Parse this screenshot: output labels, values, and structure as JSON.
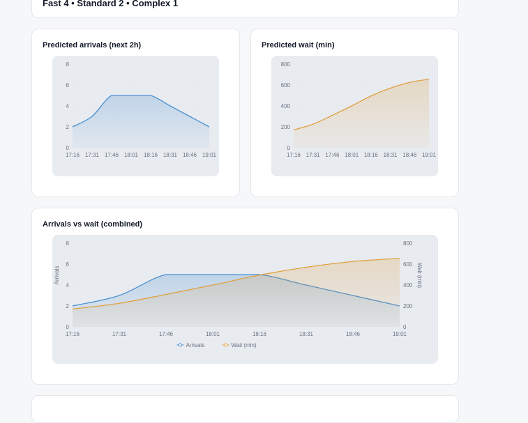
{
  "summary_card": {
    "text": "Fast 4 • Standard 2 • Complex 1"
  },
  "cards": {
    "arrivals_title": "Predicted arrivals (next 2h)",
    "wait_title": "Predicted wait (min)",
    "combined_title": "Arrivals vs wait (combined)"
  },
  "colors": {
    "arrivals": "#4a90d0",
    "wait": "#e0a040"
  },
  "chart_data": [
    {
      "type": "area",
      "title": "Predicted arrivals (next 2h)",
      "categories": [
        "17:16",
        "17:31",
        "17:46",
        "18:01",
        "18:16",
        "18:31",
        "18:46",
        "19:01"
      ],
      "series": [
        {
          "values": [
            2,
            3,
            5,
            5,
            5,
            4,
            3,
            2
          ]
        }
      ],
      "ylim": [
        0,
        8
      ],
      "yticks": [
        "0",
        "2",
        "4",
        "6",
        "8"
      ],
      "grid": true
    },
    {
      "type": "area",
      "title": "Predicted wait (min)",
      "categories": [
        "17:16",
        "17:31",
        "17:46",
        "18:01",
        "18:16",
        "18:31",
        "18:46",
        "19:01"
      ],
      "series": [
        {
          "values": [
            170,
            225,
            310,
            400,
            495,
            570,
            625,
            655
          ]
        }
      ],
      "ylim": [
        0,
        800
      ],
      "yticks": [
        "0",
        "200",
        "400",
        "600",
        "800"
      ],
      "grid": true
    },
    {
      "type": "area",
      "title": "Arrivals vs wait (combined)",
      "categories": [
        "17:16",
        "17:31",
        "17:46",
        "18:01",
        "18:16",
        "18:31",
        "18:46",
        "19:01"
      ],
      "series": [
        {
          "name": "Arrivals",
          "axis": "left",
          "values": [
            2,
            3,
            5,
            5,
            5,
            4,
            3,
            2
          ]
        },
        {
          "name": "Wait (min)",
          "axis": "right",
          "values": [
            170,
            225,
            310,
            400,
            495,
            570,
            625,
            655
          ]
        }
      ],
      "ylabel": "Arrivals",
      "ylabel_right": "Wait (min)",
      "ylim": [
        0,
        8
      ],
      "ylim_right": [
        0,
        800
      ],
      "yticks": [
        "0",
        "2",
        "4",
        "6",
        "8"
      ],
      "yticks_right": [
        "0",
        "200",
        "400",
        "600",
        "800"
      ],
      "legend": "bottom",
      "grid": true
    }
  ]
}
